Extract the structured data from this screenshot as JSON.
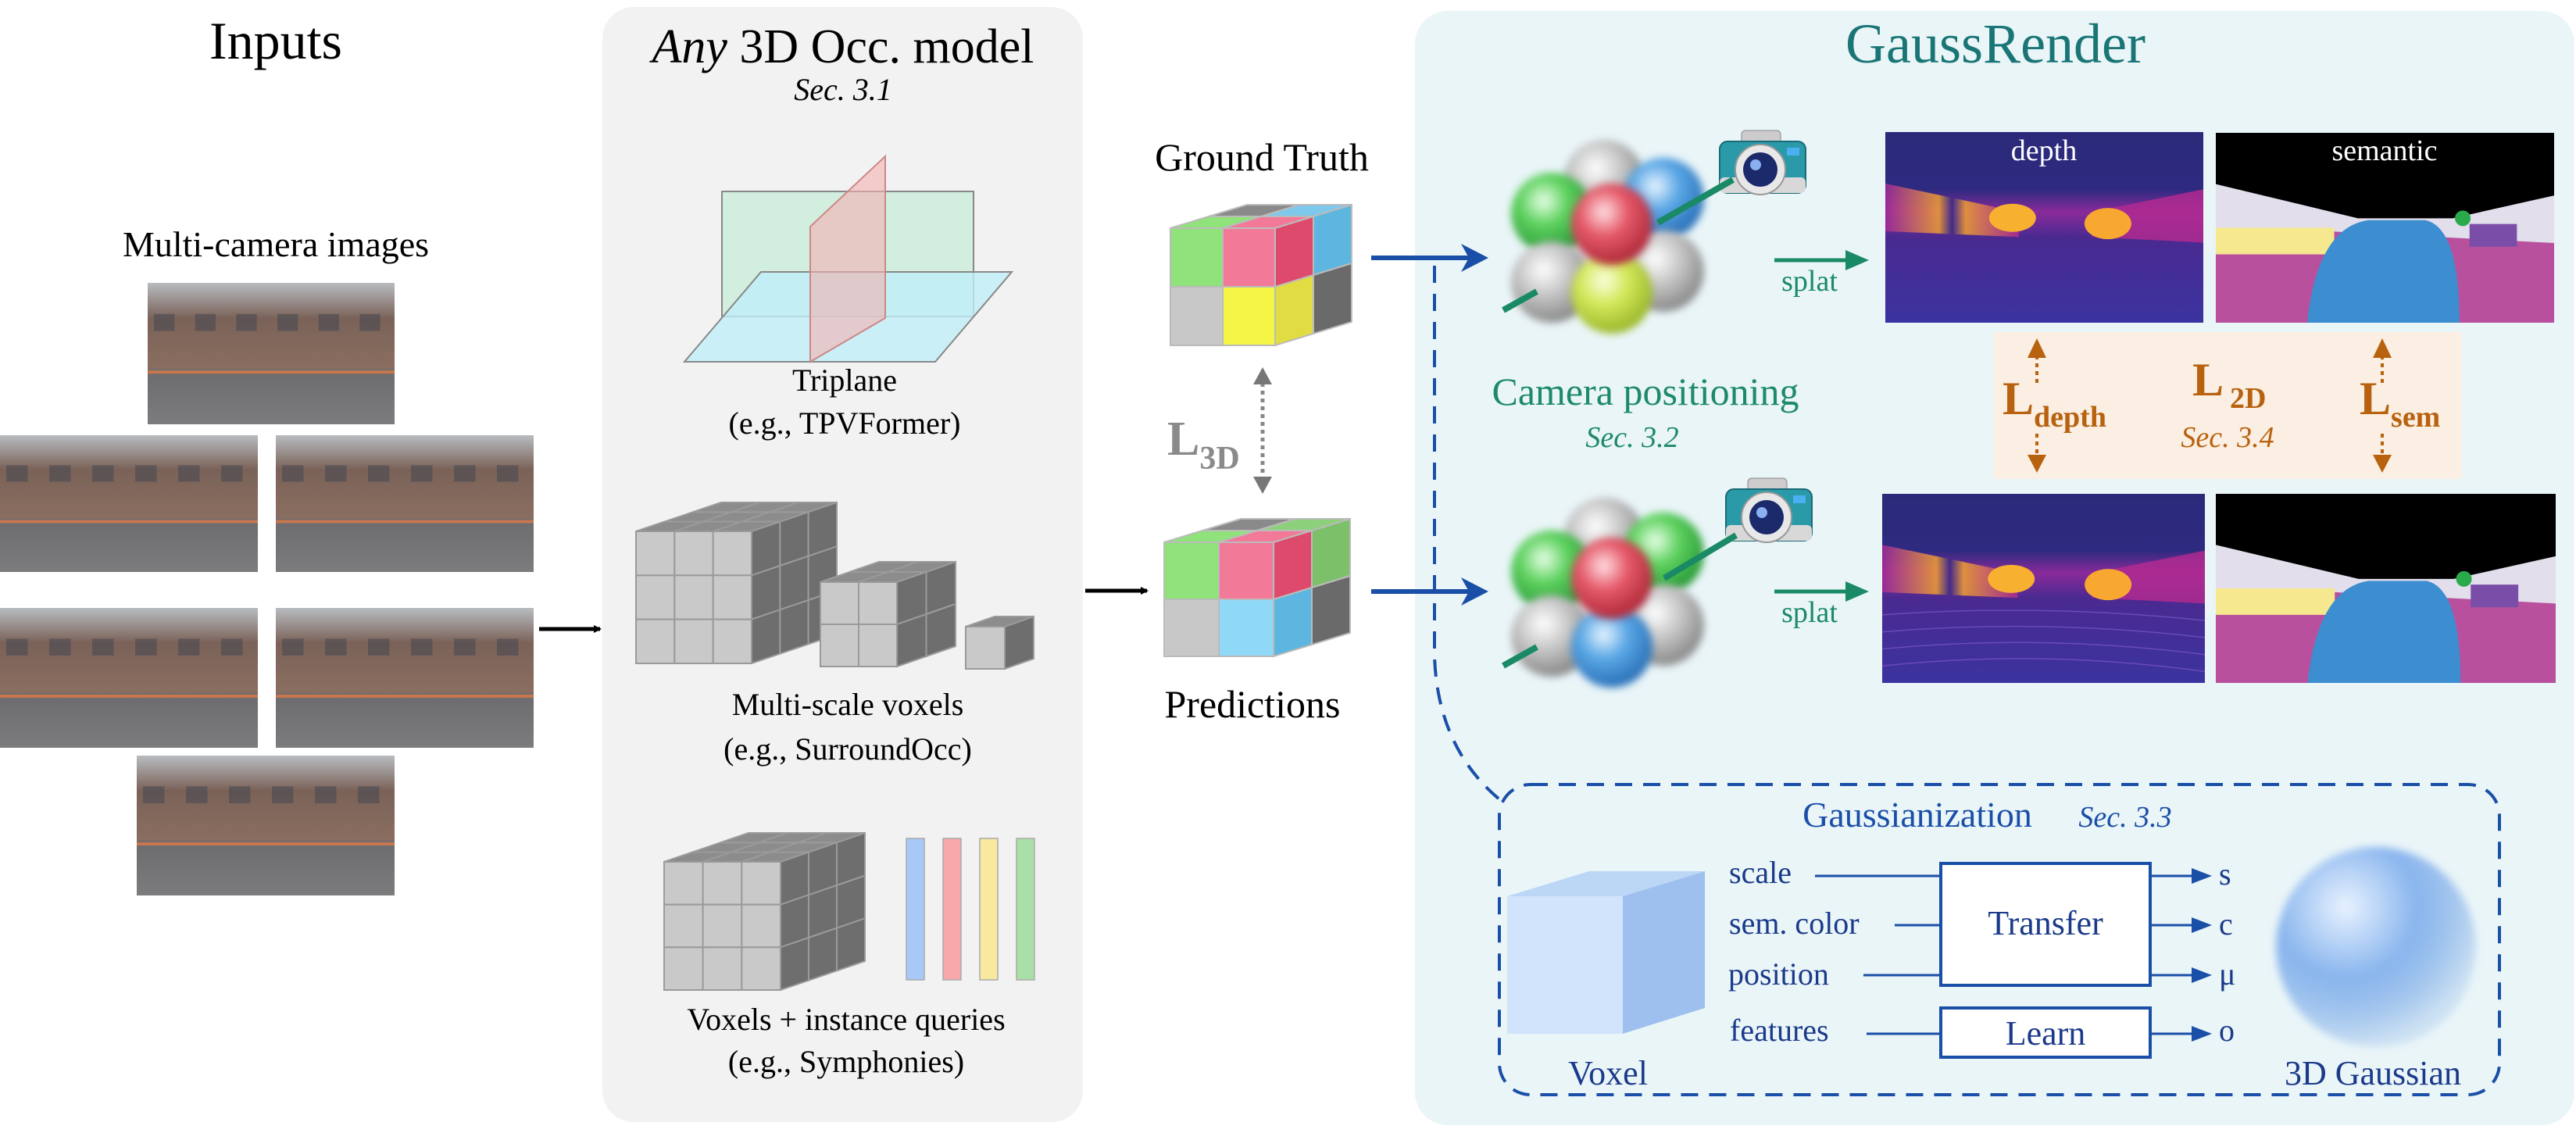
{
  "inputs": {
    "title": "Inputs",
    "subtitle": "Multi-camera images"
  },
  "occ_model": {
    "title_italic": "Any",
    "title_rest": " 3D Occ. model",
    "section": "Sec. 3.1",
    "triplane": {
      "label": "Triplane",
      "example": "(e.g., TPVFormer)"
    },
    "multiscale": {
      "label": "Multi-scale voxels",
      "example": "(e.g., SurroundOcc)"
    },
    "instance": {
      "label": "Voxels + instance queries",
      "example": "(e.g., Symphonies)"
    },
    "query_colors": [
      "#a8c8f8",
      "#f8a8a8",
      "#f8e8a0",
      "#a8e0a8"
    ]
  },
  "ground_truth": {
    "label": "Ground Truth",
    "colors": {
      "front": [
        "#90e27a",
        "#f27a98",
        "#c8c8c8",
        "#f5f545"
      ],
      "top": [
        "#8a8a8a",
        "#7ec8ec",
        "#90e27a",
        "#f27a98"
      ],
      "side": [
        "#de4a6c",
        "#5cb6e0",
        "#e0dc42",
        "#6a6a6a"
      ]
    }
  },
  "predictions": {
    "label": "Predictions",
    "colors": {
      "front": [
        "#90e27a",
        "#f27a98",
        "#c8c8c8",
        "#90d8f8"
      ],
      "top": [
        "#8a8a8a",
        "#8cd07c",
        "#90e27a",
        "#f27a98"
      ],
      "side": [
        "#de4a6c",
        "#7cc06a",
        "#5cb6e0",
        "#6a6a6a"
      ]
    }
  },
  "loss_3d": {
    "main": "L",
    "sub": "3D"
  },
  "gaussrender": {
    "title": "GaussRender",
    "splat_label": "splat",
    "camera_positioning": "Camera positioning",
    "camera_section": "Sec. 3.2",
    "depth_label": "depth",
    "semantic_label": "semantic",
    "loss_depth": {
      "main": "L",
      "sub": "depth"
    },
    "loss_2d": {
      "main": "L",
      "sub": "2D",
      "section": "Sec. 3.4"
    },
    "loss_sem": {
      "main": "L",
      "sub": "sem"
    },
    "gaussianization": {
      "title": "Gaussianization",
      "section": "Sec. 3.3",
      "voxel_label": "Voxel",
      "gaussian_label": "3D Gaussian",
      "inputs": [
        "scale",
        "sem. color",
        "position",
        "features"
      ],
      "transfer_label": "Transfer",
      "learn_label": "Learn",
      "outputs": [
        "s",
        "c",
        "μ",
        "o"
      ]
    }
  },
  "colors": {
    "title_teal": "#1a7676",
    "green_text": "#1d8a68",
    "blue": "#1a4fa8",
    "loss_orange": "#b8620f",
    "loss_box": "#fbeee2",
    "gray_panel": "#f2f2f2",
    "render_panel": "#eaf5f8"
  }
}
